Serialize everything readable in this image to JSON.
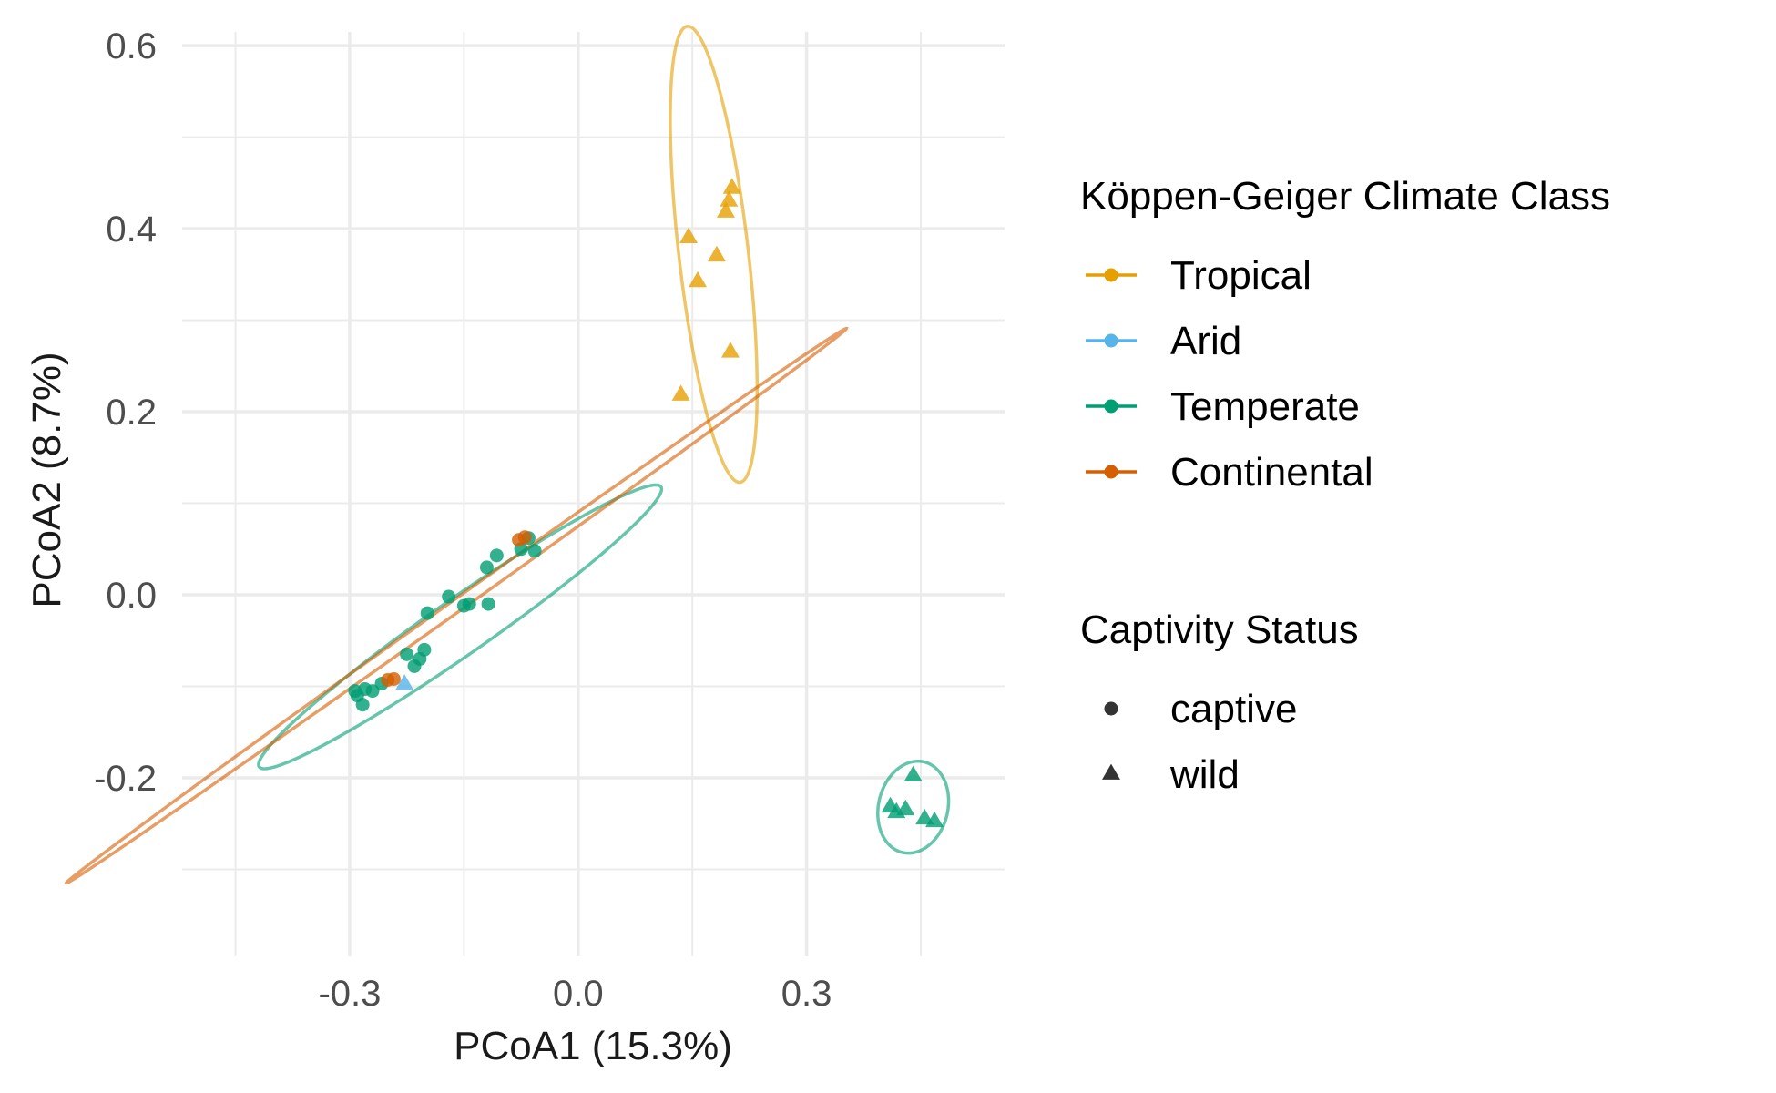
{
  "chart_data": {
    "type": "scatter",
    "xlabel": "PCoA1 (15.3%)",
    "ylabel": "PCoA2 (8.7%)",
    "xlim": [
      -0.52,
      0.56
    ],
    "ylim": [
      -0.395,
      0.615
    ],
    "x_ticks": [
      -0.3,
      0.0,
      0.3
    ],
    "x_tick_labels": [
      "-0.3",
      "0.0",
      "0.3"
    ],
    "y_ticks": [
      -0.2,
      0.0,
      0.2,
      0.4,
      0.6
    ],
    "y_tick_labels": [
      "-0.2",
      "0.0",
      "0.2",
      "0.4",
      "0.6"
    ],
    "grid": true,
    "legend_position": "right",
    "legend_color_title": "Köppen-Geiger Climate Class",
    "legend_shape_title": "Captivity Status",
    "series": [
      {
        "name": "Tropical",
        "color": "#E69F00",
        "points": [
          {
            "x": 0.145,
            "y": 0.39,
            "status": "wild"
          },
          {
            "x": 0.157,
            "y": 0.342,
            "status": "wild"
          },
          {
            "x": 0.182,
            "y": 0.37,
            "status": "wild"
          },
          {
            "x": 0.194,
            "y": 0.418,
            "status": "wild"
          },
          {
            "x": 0.198,
            "y": 0.43,
            "status": "wild"
          },
          {
            "x": 0.202,
            "y": 0.444,
            "status": "wild"
          },
          {
            "x": 0.2,
            "y": 0.265,
            "status": "wild"
          },
          {
            "x": 0.135,
            "y": 0.218,
            "status": "wild"
          }
        ],
        "ellipse": {
          "cx": 0.178,
          "cy": 0.372,
          "rx": 0.0455,
          "ry": 0.2515,
          "angle_deg": 8
        }
      },
      {
        "name": "Arid",
        "color": "#56B4E9",
        "points": [
          {
            "x": -0.228,
            "y": -0.098,
            "status": "wild"
          }
        ],
        "ellipse": null
      },
      {
        "name": "Temperate",
        "color": "#009E73",
        "points": [
          {
            "x": -0.293,
            "y": -0.105,
            "status": "captive"
          },
          {
            "x": -0.29,
            "y": -0.11,
            "status": "captive"
          },
          {
            "x": -0.283,
            "y": -0.12,
            "status": "captive"
          },
          {
            "x": -0.28,
            "y": -0.103,
            "status": "captive"
          },
          {
            "x": -0.27,
            "y": -0.105,
            "status": "captive"
          },
          {
            "x": -0.258,
            "y": -0.097,
            "status": "captive"
          },
          {
            "x": -0.225,
            "y": -0.065,
            "status": "captive"
          },
          {
            "x": -0.215,
            "y": -0.078,
            "status": "captive"
          },
          {
            "x": -0.208,
            "y": -0.07,
            "status": "captive"
          },
          {
            "x": -0.202,
            "y": -0.06,
            "status": "captive"
          },
          {
            "x": -0.198,
            "y": -0.02,
            "status": "captive"
          },
          {
            "x": -0.17,
            "y": -0.002,
            "status": "captive"
          },
          {
            "x": -0.15,
            "y": -0.012,
            "status": "captive"
          },
          {
            "x": -0.143,
            "y": -0.01,
            "status": "captive"
          },
          {
            "x": -0.118,
            "y": -0.01,
            "status": "captive"
          },
          {
            "x": -0.12,
            "y": 0.03,
            "status": "captive"
          },
          {
            "x": -0.107,
            "y": 0.043,
            "status": "captive"
          },
          {
            "x": -0.075,
            "y": 0.05,
            "status": "captive"
          },
          {
            "x": -0.065,
            "y": 0.062,
            "status": "captive"
          },
          {
            "x": -0.057,
            "y": 0.048,
            "status": "captive"
          },
          {
            "x": 0.41,
            "y": -0.232,
            "status": "wild"
          },
          {
            "x": 0.418,
            "y": -0.238,
            "status": "wild"
          },
          {
            "x": 0.43,
            "y": -0.235,
            "status": "wild"
          },
          {
            "x": 0.44,
            "y": -0.198,
            "status": "wild"
          },
          {
            "x": 0.455,
            "y": -0.245,
            "status": "wild"
          },
          {
            "x": 0.468,
            "y": -0.248,
            "status": "wild"
          }
        ],
        "ellipse": {
          "cx": -0.155,
          "cy": -0.035,
          "rx": 0.305,
          "ry": 0.032,
          "angle_deg": 30
        }
      },
      {
        "name": "Continental",
        "color": "#D55E00",
        "points": [
          {
            "x": -0.25,
            "y": -0.093,
            "status": "captive"
          },
          {
            "x": -0.242,
            "y": -0.092,
            "status": "captive"
          },
          {
            "x": -0.078,
            "y": 0.06,
            "status": "captive"
          },
          {
            "x": -0.07,
            "y": 0.063,
            "status": "captive"
          }
        ],
        "ellipse": {
          "cx": -0.16,
          "cy": -0.012,
          "rx": 0.595,
          "ry": 0.007,
          "angle_deg": 30.6
        }
      }
    ],
    "extra_ellipses": [
      {
        "series": "Temperate",
        "cx": 0.44,
        "cy": -0.232,
        "rx": 0.0445,
        "ry": 0.052,
        "angle_deg": -30
      }
    ],
    "shapes": [
      {
        "name": "captive",
        "symbol": "circle"
      },
      {
        "name": "wild",
        "symbol": "triangle"
      }
    ]
  }
}
